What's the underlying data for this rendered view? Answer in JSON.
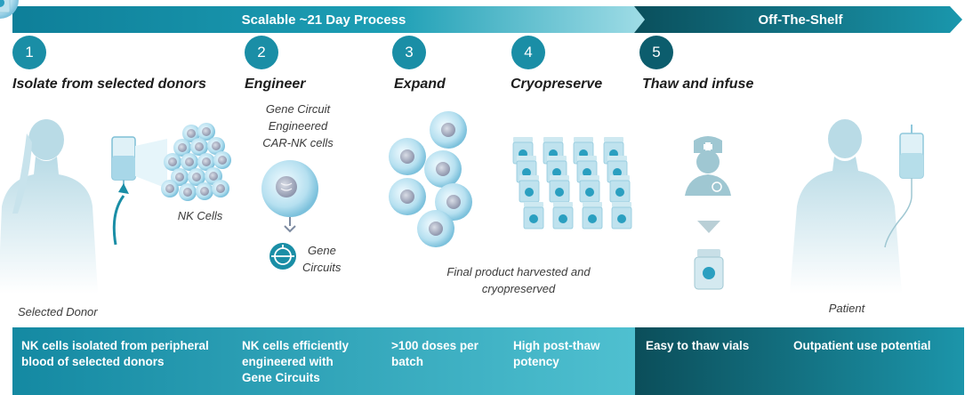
{
  "banner": {
    "process_label": "Scalable ~21 Day Process",
    "offshelf_label": "Off-The-Shelf",
    "colors": {
      "teal": "#1a8ea6",
      "dark_teal": "#0c5d6d"
    }
  },
  "steps": [
    {
      "number": "1",
      "title": "Isolate from selected donors"
    },
    {
      "number": "2",
      "title": "Engineer"
    },
    {
      "number": "3",
      "title": "Expand"
    },
    {
      "number": "4",
      "title": "Cryopreserve"
    },
    {
      "number": "5",
      "title": "Thaw and infuse"
    }
  ],
  "labels": {
    "nk_cells": "NK Cells",
    "engineered_line1": "Gene Circuit",
    "engineered_line2": "Engineered",
    "engineered_line3": "CAR-NK cells",
    "gene_circuits_line1": "Gene",
    "gene_circuits_line2": "Circuits",
    "harvest_line1": "Final product harvested and",
    "harvest_line2": "cryopreserved",
    "selected_donor": "Selected Donor",
    "patient": "Patient"
  },
  "footer": {
    "f1_line1": "NK cells isolated from peripheral",
    "f1_line2": "blood of selected donors",
    "f2_line1": "NK cells efficiently",
    "f2_line2": "engineered with",
    "f2_line3": "Gene Circuits",
    "f3_line1": ">100 doses per",
    "f3_line2": "batch",
    "f4_line1": "High post-thaw",
    "f4_line2": "potency",
    "f5": "Easy to thaw vials",
    "f6": "Outpatient use potential"
  },
  "icons": [
    "donor-silhouette-icon",
    "iv-bag-icon",
    "cell-cluster-icon",
    "car-nk-cell-icon",
    "gene-circuit-icon",
    "expanding-cells-icon",
    "vial-grid-icon",
    "nurse-icon",
    "down-arrow-icon",
    "vial-icon",
    "patient-silhouette-icon",
    "patient-iv-bag-icon"
  ]
}
